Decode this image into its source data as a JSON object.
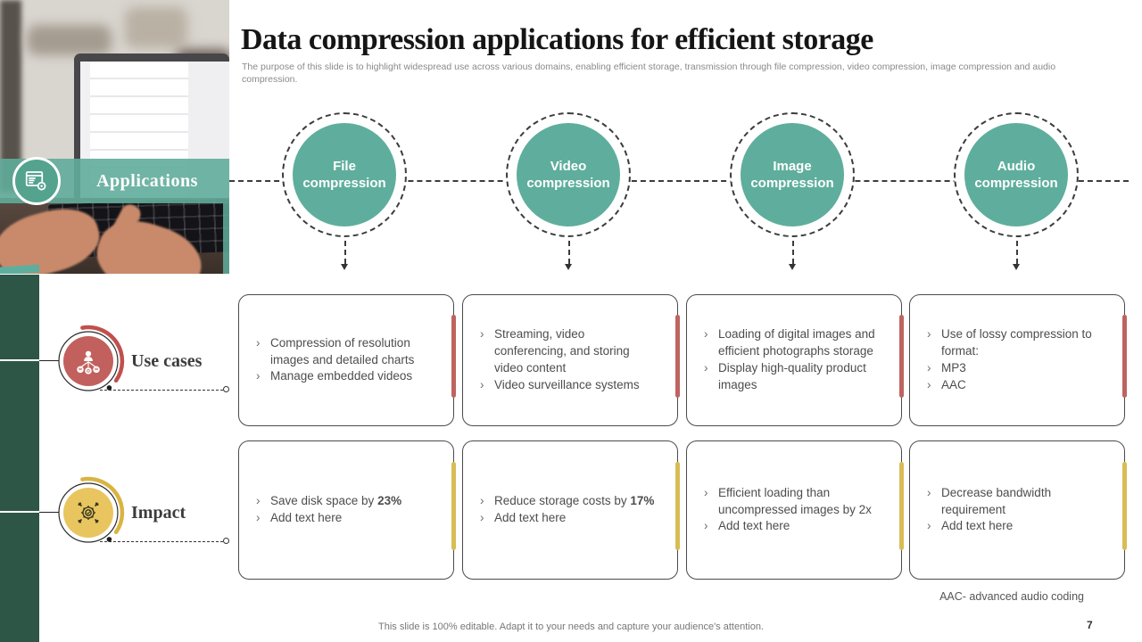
{
  "title": "Data compression applications for efficient storage",
  "subtitle": "The purpose of this slide is to highlight widespread use across various domains, enabling efficient storage, transmission through file compression, video compression, image compression and audio compression.",
  "photo_overlay": {
    "label": "Applications"
  },
  "nodes": [
    "File compression",
    "Video compression",
    "Image compression",
    "Audio compression"
  ],
  "rows": {
    "use_cases": {
      "label": "Use cases",
      "accent_color": "#be6460"
    },
    "impact": {
      "label": "Impact",
      "accent_color": "#d9bc55"
    }
  },
  "cells": {
    "use_cases": [
      [
        "Compression of resolution images and detailed charts",
        "Manage embedded videos"
      ],
      [
        "Streaming, video conferencing, and storing video content",
        "Video surveillance systems"
      ],
      [
        "Loading of digital images and efficient photographs storage",
        "Display high-quality product images"
      ],
      [
        "Use of lossy compression to format:",
        "MP3",
        "AAC"
      ]
    ],
    "impact": [
      [
        "Save disk space by <b>23%</b>",
        "Add text here"
      ],
      [
        "Reduce storage costs by <b>17%</b>",
        "Add text here"
      ],
      [
        "Efficient loading than uncompressed images by 2x",
        "Add text here"
      ],
      [
        "Decrease bandwidth requirement",
        "Add text here"
      ]
    ]
  },
  "footnote": "AAC- advanced audio coding",
  "footer_note": "This slide is 100% editable. Adapt it to your needs and capture your audience's attention.",
  "page_number": "7",
  "colors": {
    "teal": "#5fae9d",
    "dark_green": "#2d5646",
    "red": "#c2605d",
    "yellow": "#e8c55e"
  }
}
